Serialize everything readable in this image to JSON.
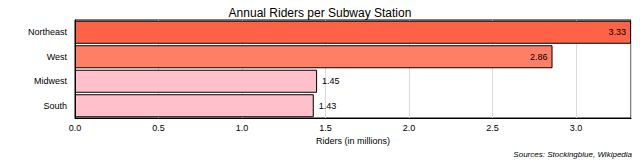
{
  "chart_data": {
    "type": "bar",
    "orientation": "horizontal",
    "title": "Annual Riders per Subway Station",
    "categories": [
      "Northeast",
      "West",
      "Midwest",
      "South"
    ],
    "values": [
      3.33,
      2.86,
      1.45,
      1.43
    ],
    "colors": [
      "#ff6347",
      "#ff7f66",
      "#ffc0cb",
      "#ffc0cb"
    ],
    "xlabel": "Riders (in millions)",
    "xlim": [
      0,
      3.33
    ],
    "xticks": [
      {
        "value": 0,
        "label": "0.0"
      },
      0.5,
      {
        "value": 1,
        "label": "1.0"
      },
      1.5,
      {
        "value": 2,
        "label": "2.0"
      },
      2.5,
      {
        "value": 3,
        "label": "3.0"
      }
    ],
    "annotations": [
      "Sources: Stockingblue, Wikipedia"
    ],
    "data_labels": true,
    "grid": true
  }
}
